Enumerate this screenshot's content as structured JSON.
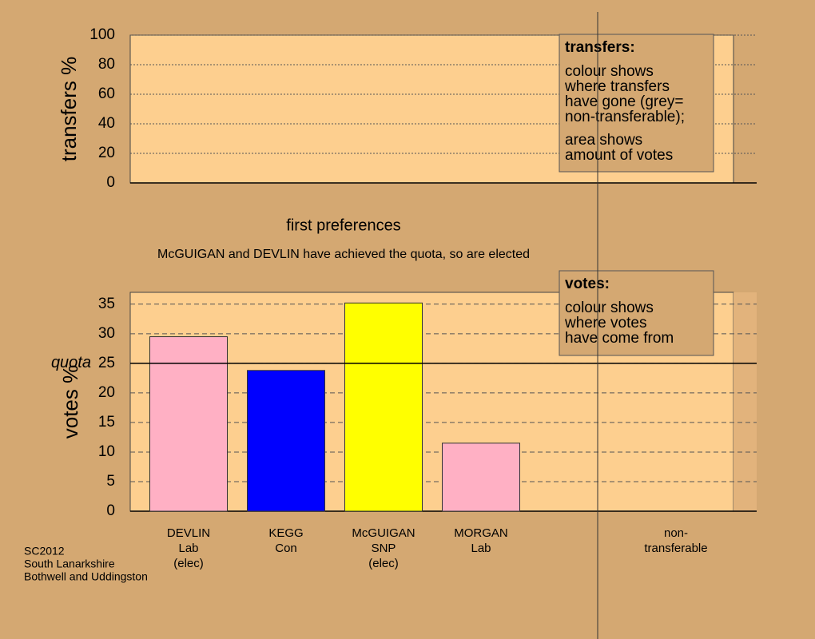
{
  "chart_data": [
    {
      "type": "bar",
      "ylabel": "transfers %",
      "ylim": [
        0,
        100
      ],
      "yticks": [
        0,
        20,
        40,
        60,
        80,
        100
      ],
      "grid": true,
      "annotation": {
        "title": "transfers:",
        "paragraphs": [
          [
            "colour shows",
            "where transfers",
            "have gone (grey=",
            "non-transferable);"
          ],
          [
            "area shows",
            "amount of votes"
          ]
        ]
      }
    },
    {
      "type": "bar",
      "title": "first preferences",
      "subtitle": "McGUIGAN and DEVLIN have achieved the quota, so are elected",
      "ylabel": "votes %",
      "ylim": [
        0,
        37
      ],
      "yticks": [
        0,
        5,
        10,
        15,
        20,
        25,
        30,
        35
      ],
      "grid": true,
      "reference": {
        "value": 25,
        "label": "quota"
      },
      "categories": [
        [
          "DEVLIN",
          "Lab",
          "(elec)"
        ],
        [
          "KEGG",
          "Con"
        ],
        [
          "McGUIGAN",
          "SNP",
          "(elec)"
        ],
        [
          "MORGAN",
          "Lab"
        ],
        [
          "non-",
          "transferable"
        ]
      ],
      "values": [
        29.5,
        23.8,
        35.2,
        11.5,
        null
      ],
      "colors": [
        "#ffb0c4",
        "#0000ff",
        "#ffff00",
        "#ffb0c4",
        null
      ],
      "annotation": {
        "title": "votes:",
        "paragraphs": [
          [
            "colour shows",
            "where votes",
            "have come from"
          ]
        ]
      }
    }
  ],
  "footer": [
    "SC2012",
    "South Lanarkshire",
    "Bothwell and Uddingston"
  ]
}
